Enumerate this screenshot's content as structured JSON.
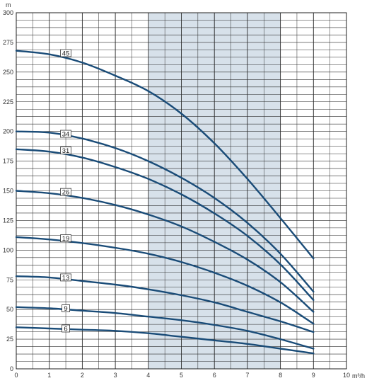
{
  "chart_data": {
    "type": "line",
    "title": "",
    "xlabel": "m³/h",
    "ylabel": "m",
    "xlim": [
      0,
      10
    ],
    "ylim": [
      0,
      300
    ],
    "x_ticks": [
      "0",
      "1",
      "2",
      "3",
      "4",
      "5",
      "6",
      "7",
      "8",
      "9",
      "10"
    ],
    "y_ticks": [
      "0",
      "25",
      "50",
      "75",
      "100",
      "125",
      "150",
      "175",
      "200",
      "225",
      "250",
      "275",
      "300"
    ],
    "grid": true,
    "shaded_band": {
      "x_from": 4,
      "x_to": 8,
      "color": "#d7e1ea"
    },
    "series_color": "#1a4c78",
    "series": [
      {
        "name": "45",
        "x": [
          0,
          1,
          2,
          3,
          4,
          5,
          6,
          7,
          8,
          9
        ],
        "y": [
          268,
          265,
          258,
          247,
          234,
          215,
          190,
          160,
          127,
          93
        ]
      },
      {
        "name": "34",
        "x": [
          0,
          1,
          2,
          3,
          4,
          5,
          6,
          7,
          8,
          9
        ],
        "y": [
          200,
          199,
          194,
          186,
          175,
          161,
          144,
          123,
          97,
          65
        ]
      },
      {
        "name": "31",
        "x": [
          0,
          1,
          2,
          3,
          4,
          5,
          6,
          7,
          8,
          9
        ],
        "y": [
          185,
          183,
          178,
          170,
          160,
          147,
          131,
          112,
          88,
          58
        ]
      },
      {
        "name": "26",
        "x": [
          0,
          1,
          2,
          3,
          4,
          5,
          6,
          7,
          8,
          9
        ],
        "y": [
          150,
          148,
          144,
          138,
          130,
          120,
          107,
          92,
          73,
          48
        ]
      },
      {
        "name": "19",
        "x": [
          0,
          1,
          2,
          3,
          4,
          5,
          6,
          7,
          8,
          9
        ],
        "y": [
          111,
          109,
          106,
          102,
          97,
          90,
          81,
          70,
          56,
          38
        ]
      },
      {
        "name": "13",
        "x": [
          0,
          1,
          2,
          3,
          4,
          5,
          6,
          7,
          8,
          9
        ],
        "y": [
          78,
          77,
          74,
          71,
          67,
          62,
          56,
          48,
          40,
          31
        ]
      },
      {
        "name": "9",
        "x": [
          0,
          1,
          2,
          3,
          4,
          5,
          6,
          7,
          8,
          9
        ],
        "y": [
          52,
          51,
          49,
          47,
          44,
          41,
          37,
          32,
          25,
          17
        ]
      },
      {
        "name": "6",
        "x": [
          0,
          1,
          2,
          3,
          4,
          5,
          6,
          7,
          8,
          9
        ],
        "y": [
          35,
          34,
          33,
          32,
          30,
          27,
          24,
          21,
          17,
          13
        ]
      }
    ],
    "curve_labels": [
      {
        "text": "45",
        "x": 1.5,
        "y": 266
      },
      {
        "text": "34",
        "x": 1.5,
        "y": 198
      },
      {
        "text": "31",
        "x": 1.5,
        "y": 184
      },
      {
        "text": "26",
        "x": 1.5,
        "y": 149
      },
      {
        "text": "19",
        "x": 1.5,
        "y": 110
      },
      {
        "text": "13",
        "x": 1.5,
        "y": 77
      },
      {
        "text": "9",
        "x": 1.5,
        "y": 51
      },
      {
        "text": "6",
        "x": 1.5,
        "y": 34
      }
    ]
  }
}
